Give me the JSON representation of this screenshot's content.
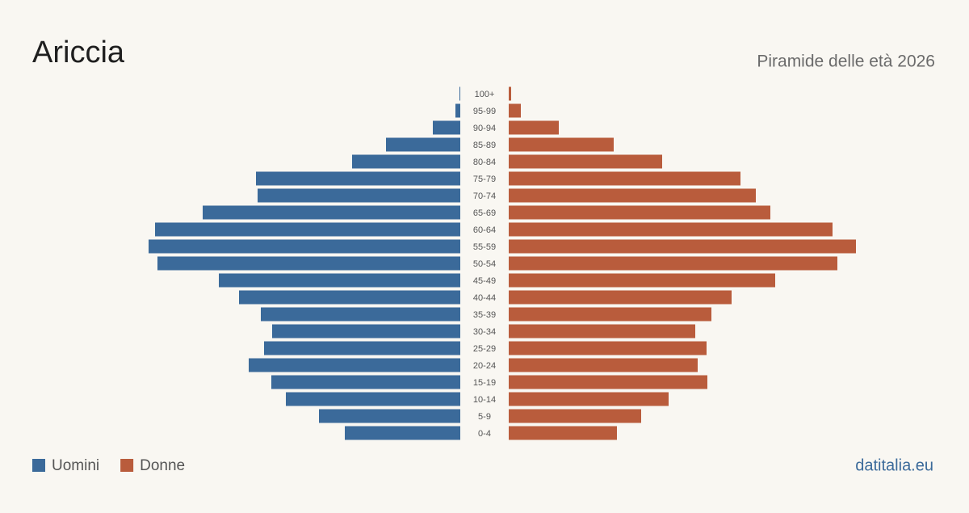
{
  "chart_data": {
    "type": "pyramid",
    "title": "Ariccia",
    "subtitle": "Piramide delle età 2026",
    "source": "datitalia.eu",
    "categories": [
      "100+",
      "95-99",
      "90-94",
      "85-89",
      "80-84",
      "75-79",
      "70-74",
      "65-69",
      "60-64",
      "55-59",
      "50-54",
      "45-49",
      "40-44",
      "35-39",
      "30-34",
      "25-29",
      "20-24",
      "15-19",
      "10-14",
      "5-9",
      "0-4"
    ],
    "series": [
      {
        "name": "Uomini",
        "color": "#3b6a9a",
        "side": "left",
        "values": [
          1,
          6,
          34,
          92,
          134,
          253,
          251,
          319,
          378,
          386,
          375,
          299,
          274,
          247,
          233,
          243,
          262,
          234,
          216,
          175,
          143
        ]
      },
      {
        "name": "Donne",
        "color": "#b95c3c",
        "side": "right",
        "values": [
          3,
          15,
          62,
          130,
          190,
          287,
          306,
          324,
          401,
          430,
          407,
          330,
          276,
          251,
          231,
          245,
          234,
          246,
          198,
          164,
          134
        ]
      }
    ]
  }
}
